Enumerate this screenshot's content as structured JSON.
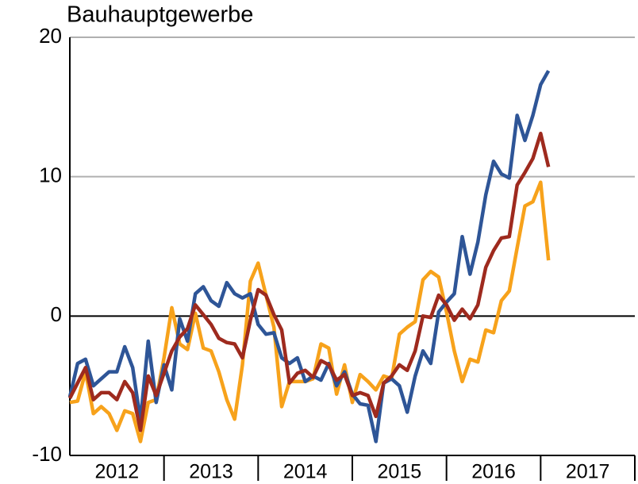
{
  "chart_data": {
    "type": "line",
    "title": "Bauhauptgewerbe",
    "x": [
      2012,
      2012.083,
      2012.167,
      2012.25,
      2012.333,
      2012.417,
      2012.5,
      2012.583,
      2012.667,
      2012.75,
      2012.833,
      2012.917,
      2013,
      2013.083,
      2013.167,
      2013.25,
      2013.333,
      2013.417,
      2013.5,
      2013.583,
      2013.667,
      2013.75,
      2013.833,
      2013.917,
      2014,
      2014.083,
      2014.167,
      2014.25,
      2014.333,
      2014.417,
      2014.5,
      2014.583,
      2014.667,
      2014.75,
      2014.833,
      2014.917,
      2015,
      2015.083,
      2015.167,
      2015.25,
      2015.333,
      2015.417,
      2015.5,
      2015.583,
      2015.667,
      2015.75,
      2015.833,
      2015.917,
      2016,
      2016.083,
      2016.167,
      2016.25,
      2016.333,
      2016.417,
      2016.5,
      2016.583,
      2016.667,
      2016.75,
      2016.833,
      2016.917,
      2017,
      2017.083
    ],
    "series": [
      {
        "color": "#f7a21b",
        "values": [
          -6.2,
          -6.1,
          -4.0,
          -7.0,
          -6.5,
          -7.0,
          -8.2,
          -6.8,
          -7.0,
          -9.0,
          -6.2,
          -6.0,
          -3.0,
          0.6,
          -2.0,
          -2.4,
          0.2,
          -2.3,
          -2.5,
          -4.0,
          -6.0,
          -7.4,
          -3.5,
          2.5,
          3.8,
          1.5,
          -0.8,
          -6.5,
          -4.7,
          -4.7,
          -4.7,
          -4.5,
          -2.0,
          -2.3,
          -5.6,
          -3.5,
          -6.2,
          -4.2,
          -4.7,
          -5.3,
          -4.3,
          -4.5,
          -1.3,
          -0.8,
          -0.4,
          2.6,
          3.2,
          2.8,
          0.3,
          -2.5,
          -4.7,
          -3.1,
          -3.3,
          -1.0,
          -1.2,
          1.1,
          1.8,
          4.9,
          7.9,
          8.2,
          9.6,
          4.0
        ]
      },
      {
        "color": "#2e5597",
        "values": [
          -5.8,
          -3.4,
          -3.1,
          -5.0,
          -4.5,
          -4.0,
          -4.0,
          -2.2,
          -3.7,
          -7.5,
          -1.8,
          -6.2,
          -3.5,
          -5.3,
          -0.2,
          -1.8,
          1.6,
          2.1,
          1.1,
          0.7,
          2.4,
          1.6,
          1.3,
          1.6,
          -0.6,
          -1.3,
          -1.2,
          -3.0,
          -3.4,
          -3.0,
          -4.7,
          -4.3,
          -4.6,
          -3.4,
          -5.0,
          -4.0,
          -5.6,
          -6.3,
          -6.4,
          -9.0,
          -4.8,
          -4.5,
          -5.0,
          -6.9,
          -4.3,
          -2.5,
          -3.4,
          0.3,
          1.0,
          1.6,
          5.7,
          3.0,
          5.3,
          8.7,
          11.1,
          10.2,
          9.9,
          14.4,
          12.6,
          14.4,
          16.6,
          17.6
        ]
      },
      {
        "color": "#9e2a1e",
        "values": [
          -5.9,
          -4.8,
          -3.7,
          -6.0,
          -5.5,
          -5.5,
          -6.0,
          -4.7,
          -5.5,
          -8.2,
          -4.3,
          -5.7,
          -4.1,
          -2.5,
          -1.5,
          -0.9,
          0.8,
          0.1,
          -0.6,
          -1.6,
          -1.9,
          -2.0,
          -3.0,
          -0.3,
          1.9,
          1.5,
          0.1,
          -1.0,
          -4.8,
          -4.1,
          -3.9,
          -4.4,
          -3.2,
          -3.5,
          -4.6,
          -4.2,
          -5.7,
          -5.5,
          -5.7,
          -7.2,
          -4.8,
          -4.3,
          -3.5,
          -3.9,
          -2.5,
          0.0,
          -0.1,
          1.5,
          0.8,
          -0.3,
          0.5,
          -0.2,
          0.8,
          3.5,
          4.7,
          5.6,
          5.7,
          9.4,
          10.3,
          11.3,
          13.1,
          10.7
        ]
      }
    ],
    "xlim": [
      2012,
      2018
    ],
    "xticks": [
      {
        "value": 2012.5,
        "label": "2012"
      },
      {
        "value": 2013.5,
        "label": "2013"
      },
      {
        "value": 2014.5,
        "label": "2014"
      },
      {
        "value": 2015.5,
        "label": "2015"
      },
      {
        "value": 2016.5,
        "label": "2016"
      },
      {
        "value": 2017.5,
        "label": "2017"
      }
    ],
    "ylim": [
      -10,
      20
    ],
    "yticks": [
      -10,
      0,
      10,
      20
    ],
    "grid": true
  }
}
